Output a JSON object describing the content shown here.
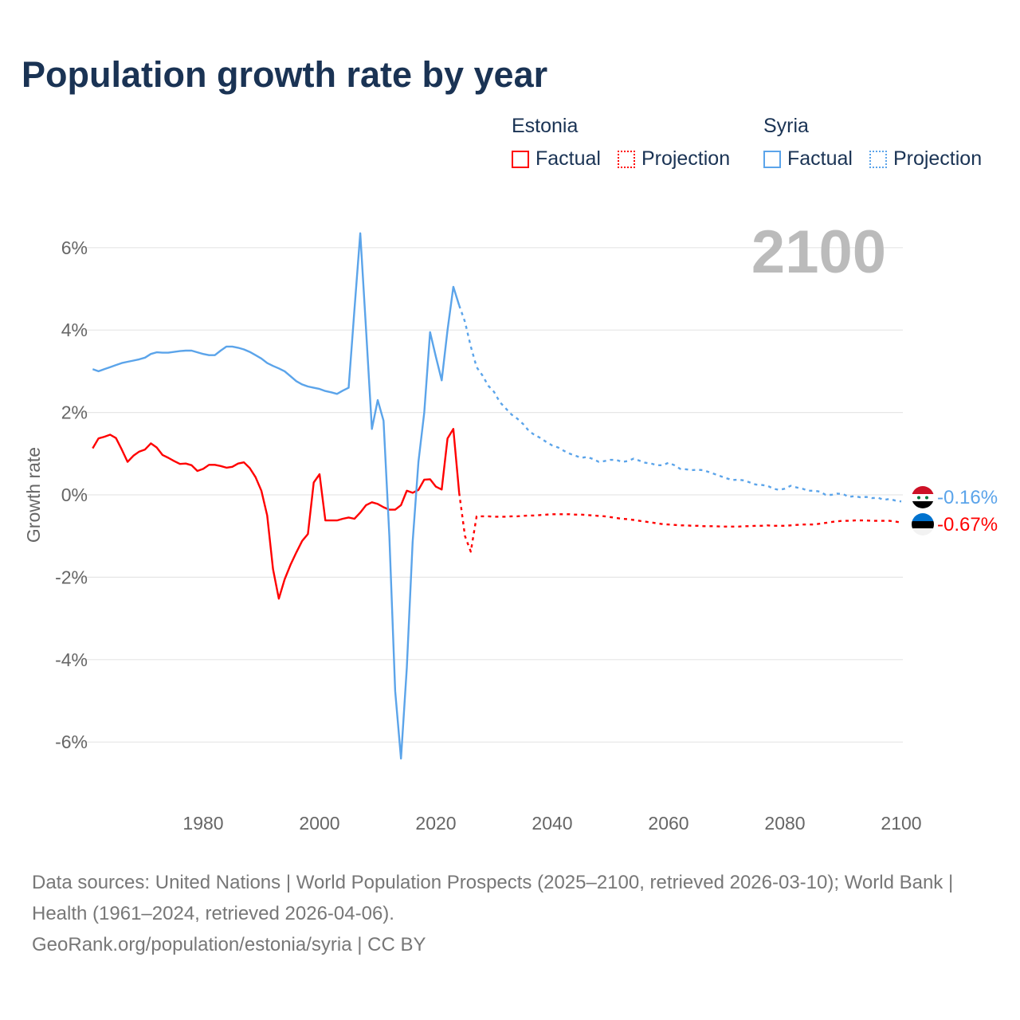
{
  "title": "Population growth rate by year",
  "legend": {
    "groups": [
      {
        "country": "Estonia",
        "factual": "Factual",
        "projection": "Projection",
        "color": "#ff0000"
      },
      {
        "country": "Syria",
        "factual": "Factual",
        "projection": "Projection",
        "color": "#5ba4ea"
      }
    ]
  },
  "year_overlay": "2100",
  "end_labels": {
    "syria": "-0.16%",
    "estonia": "-0.67%"
  },
  "footer": {
    "sources": "Data sources: United Nations | World Population Prospects (2025–2100, retrieved 2026-03-10); World Bank | Health (1961–2024, retrieved 2026-04-06).",
    "credit": "GeoRank.org/population/estonia/syria | CC BY"
  },
  "chart_data": {
    "type": "line",
    "title": "Population growth rate by year",
    "xlabel": "",
    "ylabel": "Growth rate",
    "xlim": [
      1961,
      2100
    ],
    "ylim": [
      -7,
      7
    ],
    "x_ticks": [
      "1980",
      "2000",
      "2020",
      "2040",
      "2060",
      "2080",
      "2100"
    ],
    "x_tick_values": [
      1980,
      2000,
      2020,
      2040,
      2060,
      2080,
      2100
    ],
    "y_ticks": [
      "6%",
      "4%",
      "2%",
      "0%",
      "-2%",
      "-4%",
      "-6%"
    ],
    "y_tick_values": [
      6,
      4,
      2,
      0,
      -2,
      -4,
      -6
    ],
    "grid": true,
    "legend_position": "top-right",
    "series": [
      {
        "name": "Estonia Factual",
        "color": "#ff0000",
        "dashed": false,
        "start_year": 1961,
        "values": [
          1.13,
          1.37,
          1.41,
          1.46,
          1.38,
          1.1,
          0.8,
          0.95,
          1.05,
          1.1,
          1.25,
          1.15,
          0.97,
          0.9,
          0.82,
          0.75,
          0.76,
          0.72,
          0.58,
          0.63,
          0.73,
          0.73,
          0.7,
          0.66,
          0.68,
          0.76,
          0.79,
          0.65,
          0.43,
          0.1,
          -0.5,
          -1.8,
          -2.52,
          -2.05,
          -1.7,
          -1.4,
          -1.12,
          -0.95,
          0.3,
          0.5,
          -0.62,
          -0.62,
          -0.62,
          -0.58,
          -0.55,
          -0.58,
          -0.43,
          -0.25,
          -0.18,
          -0.22,
          -0.3,
          -0.36,
          -0.36,
          -0.25,
          0.1,
          0.05,
          0.12,
          0.37,
          0.38,
          0.2,
          0.13,
          1.37,
          1.6,
          0.05
        ]
      },
      {
        "name": "Estonia Projection",
        "color": "#ff0000",
        "dashed": true,
        "start_year": 2024,
        "values": [
          0.05,
          -1.0,
          -1.38,
          -0.52,
          -0.52,
          -0.52,
          -0.53,
          -0.53,
          -0.53,
          -0.52,
          -0.52,
          -0.51,
          -0.5,
          -0.5,
          -0.49,
          -0.48,
          -0.47,
          -0.47,
          -0.47,
          -0.47,
          -0.48,
          -0.48,
          -0.49,
          -0.5,
          -0.51,
          -0.52,
          -0.54,
          -0.56,
          -0.58,
          -0.59,
          -0.61,
          -0.63,
          -0.65,
          -0.67,
          -0.69,
          -0.71,
          -0.72,
          -0.73,
          -0.74,
          -0.74,
          -0.75,
          -0.75,
          -0.76,
          -0.76,
          -0.76,
          -0.77,
          -0.77,
          -0.77,
          -0.77,
          -0.76,
          -0.76,
          -0.75,
          -0.75,
          -0.74,
          -0.75,
          -0.75,
          -0.75,
          -0.74,
          -0.73,
          -0.72,
          -0.72,
          -0.72,
          -0.7,
          -0.68,
          -0.66,
          -0.64,
          -0.63,
          -0.63,
          -0.62,
          -0.62,
          -0.62,
          -0.63,
          -0.63,
          -0.63,
          -0.63,
          -0.65,
          -0.67
        ]
      },
      {
        "name": "Syria Factual",
        "color": "#5ba4ea",
        "dashed": false,
        "start_year": 1961,
        "values": [
          3.05,
          3.0,
          3.05,
          3.1,
          3.15,
          3.2,
          3.23,
          3.26,
          3.29,
          3.33,
          3.42,
          3.46,
          3.45,
          3.45,
          3.47,
          3.49,
          3.5,
          3.5,
          3.46,
          3.42,
          3.39,
          3.39,
          3.5,
          3.6,
          3.6,
          3.57,
          3.53,
          3.47,
          3.39,
          3.31,
          3.2,
          3.13,
          3.07,
          3.0,
          2.88,
          2.76,
          2.68,
          2.63,
          2.6,
          2.57,
          2.52,
          2.49,
          2.45,
          2.53,
          2.6,
          4.5,
          6.35,
          4.0,
          1.6,
          2.3,
          1.8,
          -1.0,
          -4.76,
          -6.4,
          -4.2,
          -1.15,
          0.8,
          2.0,
          3.95,
          3.35,
          2.78,
          4.0,
          5.05,
          4.6
        ]
      },
      {
        "name": "Syria Projection",
        "color": "#5ba4ea",
        "dashed": true,
        "start_year": 2024,
        "values": [
          4.6,
          4.2,
          3.6,
          3.1,
          2.9,
          2.65,
          2.5,
          2.25,
          2.1,
          1.95,
          1.85,
          1.72,
          1.55,
          1.45,
          1.38,
          1.28,
          1.2,
          1.15,
          1.07,
          1.0,
          0.95,
          0.9,
          0.92,
          0.87,
          0.8,
          0.82,
          0.85,
          0.85,
          0.8,
          0.82,
          0.88,
          0.83,
          0.78,
          0.76,
          0.72,
          0.72,
          0.78,
          0.72,
          0.63,
          0.62,
          0.6,
          0.61,
          0.6,
          0.55,
          0.5,
          0.45,
          0.4,
          0.36,
          0.37,
          0.35,
          0.3,
          0.25,
          0.24,
          0.22,
          0.15,
          0.12,
          0.15,
          0.22,
          0.18,
          0.15,
          0.1,
          0.1,
          0.08,
          0.0,
          0.0,
          0.03,
          0.02,
          -0.05,
          -0.03,
          -0.06,
          -0.05,
          -0.08,
          -0.07,
          -0.12,
          -0.1,
          -0.14,
          -0.16
        ]
      }
    ]
  }
}
